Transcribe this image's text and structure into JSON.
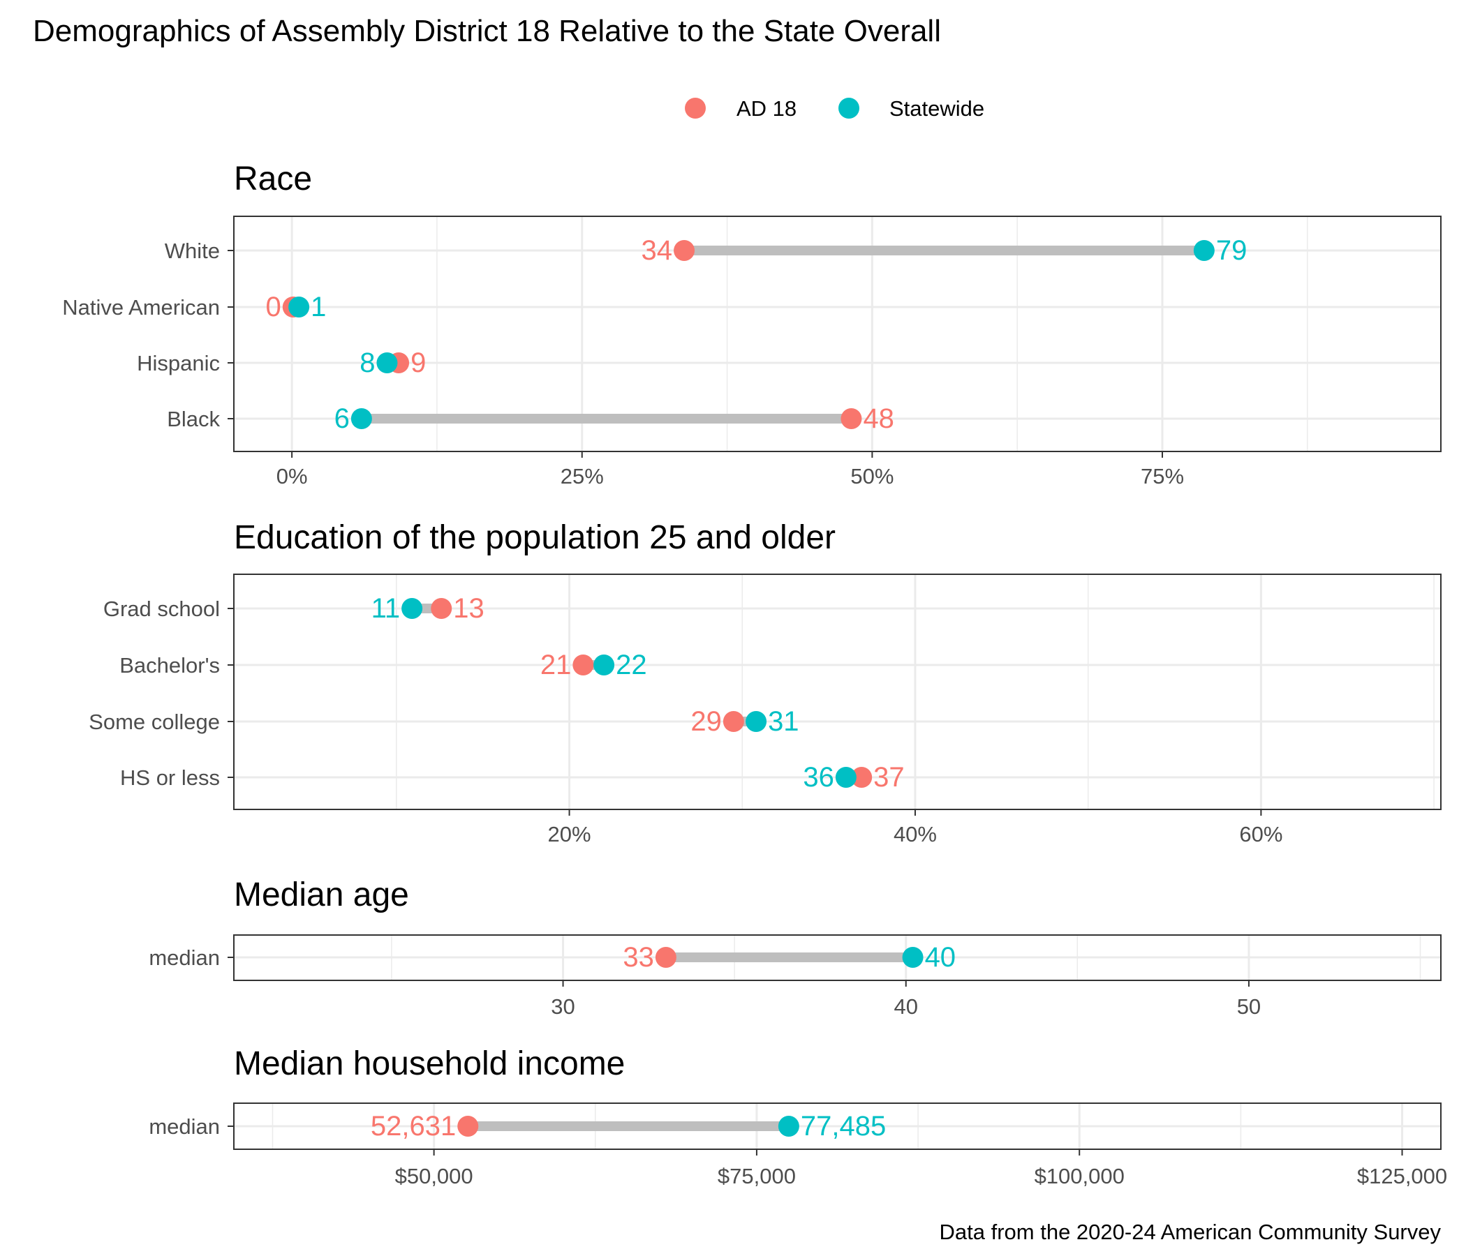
{
  "title": "Demographics of Assembly District 18 Relative to the State Overall",
  "caption": "Data from the 2020-24 American Community Survey",
  "legend": {
    "position": "top",
    "items": [
      {
        "name": "AD 18",
        "color": "#F8766D"
      },
      {
        "name": "Statewide",
        "color": "#00BFC4"
      }
    ]
  },
  "colors": {
    "district": "#F8766D",
    "statewide": "#00BFC4",
    "connector": "#BEBEBE",
    "grid": "#EBEBEB"
  },
  "chart_data": [
    {
      "type": "dumbbell",
      "title": "Race",
      "grid": true,
      "xlim": [
        -5,
        99
      ],
      "x_ticks": [
        0,
        25,
        50,
        75
      ],
      "x_tick_labels": [
        "0%",
        "25%",
        "50%",
        "75%"
      ],
      "categories": [
        "White",
        "Native American",
        "Hispanic",
        "Black"
      ],
      "series": [
        {
          "name": "AD 18",
          "values": [
            33.8,
            0.1,
            9.2,
            48.2
          ],
          "labels": [
            "34",
            "0",
            "9",
            "48"
          ]
        },
        {
          "name": "Statewide",
          "values": [
            78.6,
            0.6,
            8.2,
            6.0
          ],
          "labels": [
            "79",
            "1",
            "8",
            "6"
          ]
        }
      ]
    },
    {
      "type": "dumbbell",
      "title": "Education of the population 25 and older",
      "grid": true,
      "xlim": [
        0.6,
        70.4
      ],
      "x_ticks": [
        20,
        40,
        60
      ],
      "x_tick_labels": [
        "20%",
        "40%",
        "60%"
      ],
      "categories": [
        "Grad school",
        "Bachelor's",
        "Some college",
        "HS or less"
      ],
      "series": [
        {
          "name": "AD 18",
          "values": [
            12.6,
            20.8,
            29.5,
            36.9
          ],
          "labels": [
            "13",
            "21",
            "29",
            "37"
          ]
        },
        {
          "name": "Statewide",
          "values": [
            10.9,
            22.0,
            30.8,
            36.0
          ],
          "labels": [
            "11",
            "22",
            "31",
            "36"
          ]
        }
      ]
    },
    {
      "type": "dumbbell",
      "title": "Median age",
      "grid": true,
      "xlim": [
        20.4,
        55.6
      ],
      "x_ticks": [
        30,
        40,
        50
      ],
      "x_tick_labels": [
        "30",
        "40",
        "50"
      ],
      "categories": [
        "median"
      ],
      "series": [
        {
          "name": "AD 18",
          "values": [
            33.0
          ],
          "labels": [
            "33"
          ]
        },
        {
          "name": "Statewide",
          "values": [
            40.2
          ],
          "labels": [
            "40"
          ]
        }
      ]
    },
    {
      "type": "dumbbell",
      "title": "Median household income",
      "grid": true,
      "xlim": [
        34500,
        128000
      ],
      "x_ticks": [
        50000,
        75000,
        100000,
        125000
      ],
      "x_tick_labels": [
        "$50,000",
        "$75,000",
        "$100,000",
        "$125,000"
      ],
      "categories": [
        "median"
      ],
      "series": [
        {
          "name": "AD 18",
          "values": [
            52631
          ],
          "labels": [
            "52,631"
          ]
        },
        {
          "name": "Statewide",
          "values": [
            77485
          ],
          "labels": [
            "77,485"
          ]
        }
      ]
    }
  ]
}
